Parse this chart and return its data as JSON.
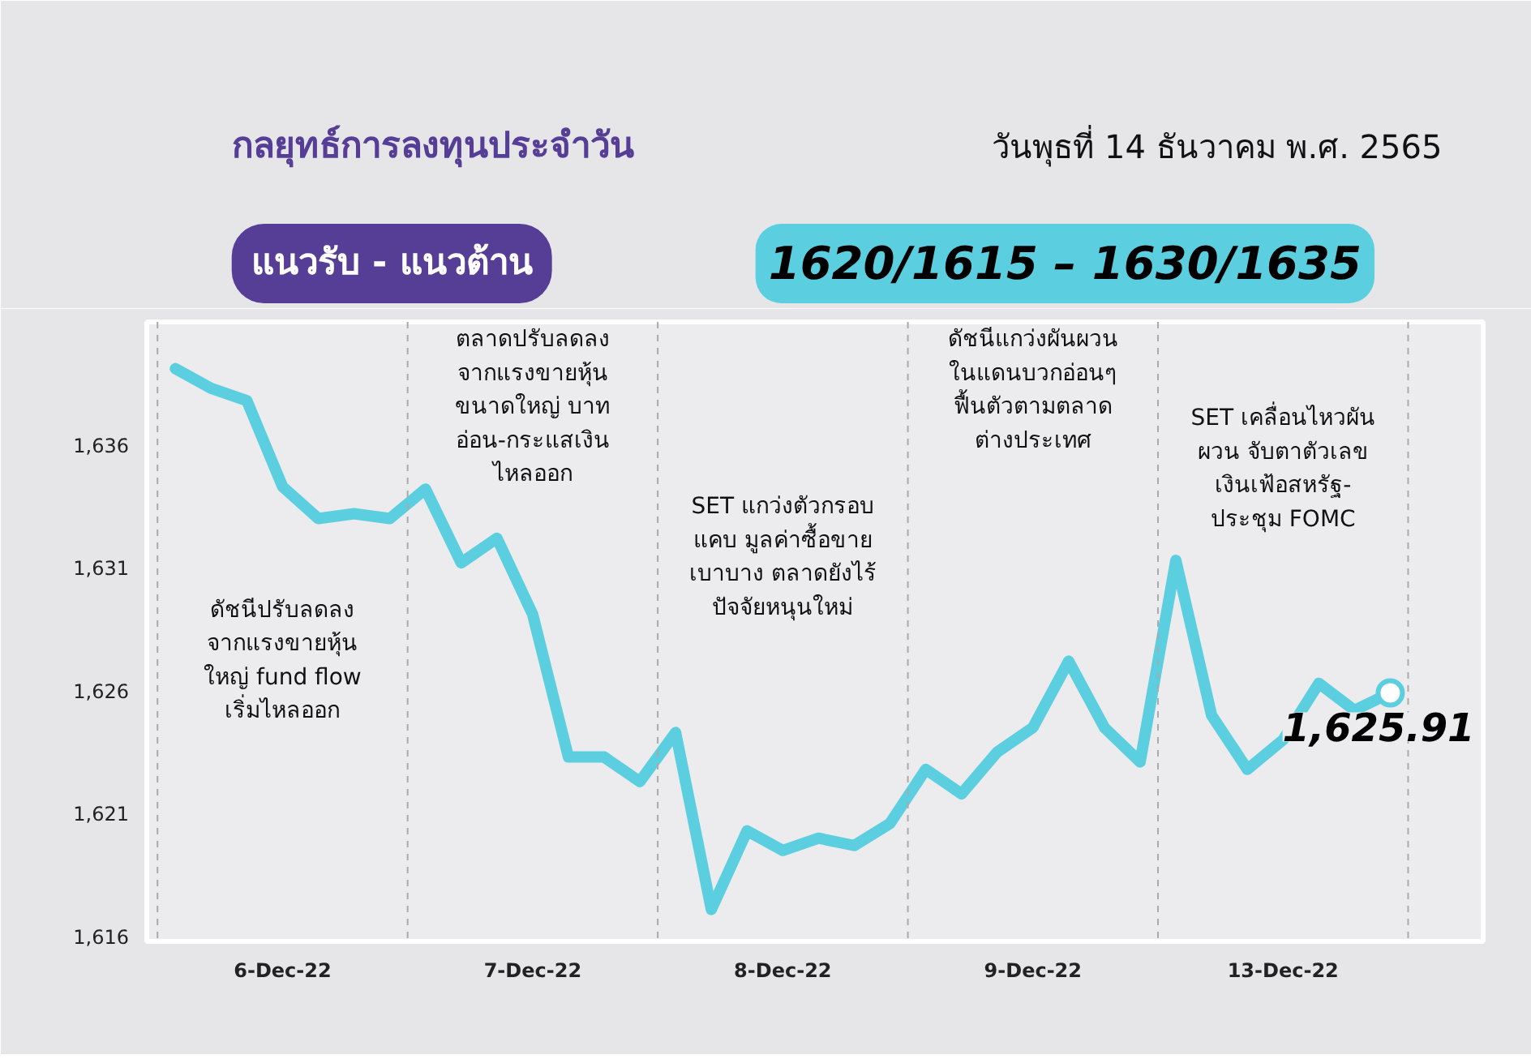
{
  "chart_data": {
    "type": "line",
    "title": "กลยุทธ์การลงทุนประจำวัน",
    "subtitle": "วันพุธที่ 14 ธันวาคม พ.ศ. 2565",
    "annotations": [
      "ดัชนีปรับลดลง\nจากแรงขายหุ้น\nใหญ่ fund flow\nเริ่มไหลออก",
      "ตลาดปรับลดลง\nจากแรงขายหุ้น\nขนาดใหญ่ บาท\nอ่อน-กระแสเงิน\nไหลออก",
      "SET แกว่งตัวกรอบ\nแคบ มูลค่าซื้อขาย\nเบาบาง ตลาดยังไร้\nปัจจัยหนุนใหม่",
      "ดัชนีแกว่งผันผวน\nในแดนบวกอ่อนๆ\nฟื้นตัวตามตลาด\nต่างประเทศ",
      "SET เคลื่อนไหวผัน\nผวน จับตาตัวเลข\nเงินเฟ้อสหรัฐ-\nประชุม FOMC",
      "แนวรับ - แนวต้าน",
      "1620/1615 – 1630/1635"
    ],
    "categories": [
      null,
      null,
      null,
      "6-Dec-22",
      null,
      null,
      null,
      null,
      null,
      null,
      "7-Dec-22",
      null,
      null,
      null,
      null,
      null,
      null,
      "8-Dec-22",
      null,
      null,
      null,
      null,
      null,
      null,
      "9-Dec-22",
      null,
      null,
      null,
      null,
      null,
      null,
      "13-Dec-22",
      null,
      null,
      null
    ],
    "series": [
      {
        "color": "#5bcfdf",
        "values": [
          1639.1,
          1638.3,
          1637.8,
          1634.3,
          1633.0,
          1633.2,
          1633.0,
          1634.2,
          1631.2,
          1632.2,
          1629.1,
          1623.3,
          1623.3,
          1622.3,
          1624.3,
          1617.1,
          1620.3,
          1619.5,
          1620.0,
          1619.7,
          1620.6,
          1622.8,
          1621.8,
          1623.5,
          1624.5,
          1627.2,
          1624.5,
          1623.1,
          1631.3,
          1625.0,
          1622.8,
          1624.0,
          1626.3,
          1625.2,
          1625.91
        ],
        "value_labels": [
          null,
          null,
          null,
          null,
          null,
          null,
          null,
          null,
          null,
          null,
          null,
          null,
          null,
          null,
          null,
          null,
          null,
          null,
          null,
          null,
          null,
          null,
          null,
          null,
          null,
          null,
          null,
          null,
          null,
          null,
          null,
          null,
          null,
          null,
          "1,625.91"
        ]
      }
    ],
    "ylim": [
      1615.8,
      1641.0
    ],
    "yticks": [
      {
        "value": 1616,
        "label": "1,616"
      },
      {
        "value": 1621,
        "label": "1,621"
      },
      {
        "value": 1626,
        "label": "1,626"
      },
      {
        "value": 1631,
        "label": "1,631"
      },
      {
        "value": 1636,
        "label": "1,636"
      }
    ],
    "grid": false
  }
}
